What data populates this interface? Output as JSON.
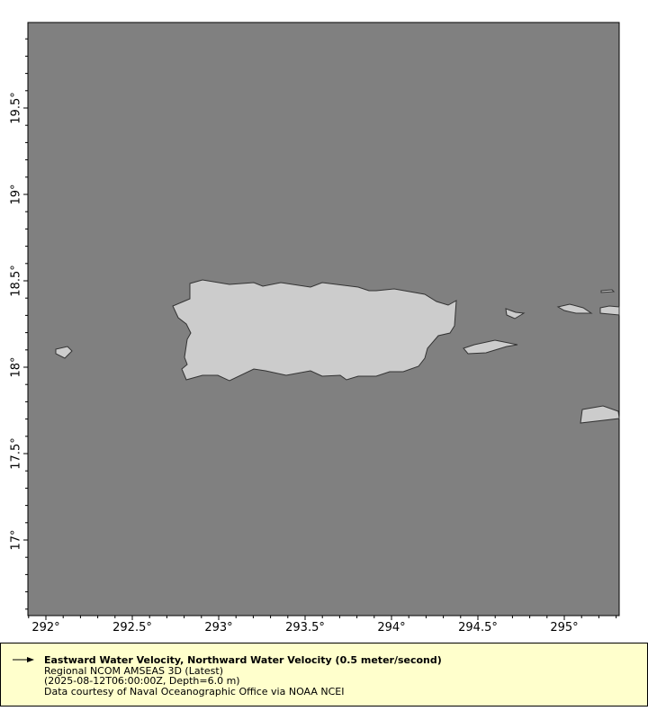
{
  "map": {
    "ocean_color": "#808080",
    "land_color": "#cccccc",
    "x_ticks": [
      "292°",
      "292.5°",
      "293°",
      "293.5°",
      "294°",
      "294.5°",
      "295°"
    ],
    "y_ticks": [
      "19.5°",
      "19°",
      "18.5°",
      "18°",
      "17.5°",
      "17°"
    ],
    "lon_range": [
      291.9,
      295.32
    ],
    "lat_range": [
      16.56,
      19.99
    ]
  },
  "legend": {
    "icon": "vector-arrow-icon",
    "title": "Eastward Water Velocity, Northward Water Velocity (0.5 meter/second)",
    "line2": "Regional NCOM AMSEAS 3D (Latest)",
    "line3": "(2025-08-12T06:00:00Z, Depth=6.0 m)",
    "line4": "Data courtesy of Naval Oceanographic Office via NOAA NCEI"
  }
}
